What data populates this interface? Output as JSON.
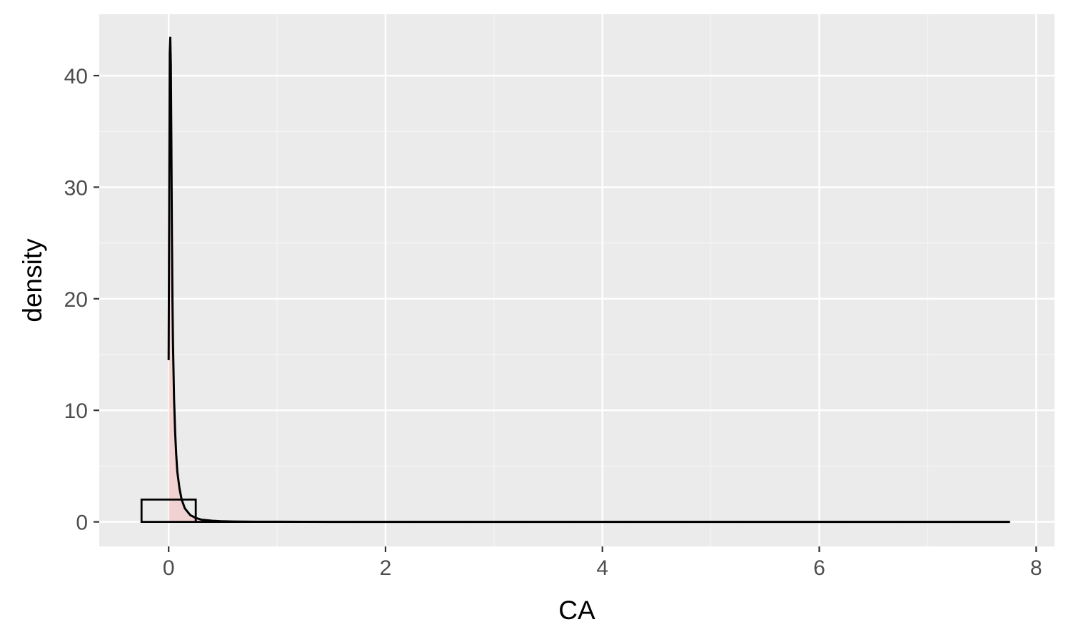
{
  "chart_data": {
    "type": "histogram-density",
    "xlabel": "CA",
    "ylabel": "density",
    "xlim": [
      -0.64,
      8.17
    ],
    "ylim": [
      -2.2,
      45.5
    ],
    "x_ticks": [
      0,
      2,
      4,
      6,
      8
    ],
    "x_tick_labels": [
      "0",
      "2",
      "4",
      "6",
      "8"
    ],
    "y_ticks": [
      0,
      10,
      20,
      30,
      40
    ],
    "y_tick_labels": [
      "0",
      "10",
      "20",
      "30",
      "40"
    ],
    "grid": true,
    "legend": "none",
    "histogram": {
      "bins": [
        {
          "x_start": -0.25,
          "x_end": 0.25,
          "density": 2.0
        },
        {
          "x_start": 0.25,
          "x_end": 0.75,
          "density": 0.0
        },
        {
          "x_start": 0.75,
          "x_end": 1.25,
          "density": 0.0
        },
        {
          "x_start": 1.25,
          "x_end": 1.75,
          "density": 0.0
        },
        {
          "x_start": 1.75,
          "x_end": 2.25,
          "density": 0.0
        },
        {
          "x_start": 2.25,
          "x_end": 2.75,
          "density": 0.0
        },
        {
          "x_start": 2.75,
          "x_end": 3.25,
          "density": 0.0
        },
        {
          "x_start": 3.25,
          "x_end": 3.75,
          "density": 0.0
        },
        {
          "x_start": 3.75,
          "x_end": 4.25,
          "density": 0.0
        },
        {
          "x_start": 4.25,
          "x_end": 4.75,
          "density": 0.0
        },
        {
          "x_start": 4.75,
          "x_end": 5.25,
          "density": 0.0
        },
        {
          "x_start": 5.25,
          "x_end": 5.75,
          "density": 0.0
        },
        {
          "x_start": 5.75,
          "x_end": 6.25,
          "density": 0.0
        },
        {
          "x_start": 6.25,
          "x_end": 6.75,
          "density": 0.0
        },
        {
          "x_start": 6.75,
          "x_end": 7.25,
          "density": 0.0
        },
        {
          "x_start": 7.25,
          "x_end": 7.75,
          "density": 0.0
        }
      ],
      "fill": "none",
      "outline": "#000000"
    },
    "density_curve": {
      "x": [
        0.0,
        0.005,
        0.01,
        0.015,
        0.02,
        0.025,
        0.03,
        0.035,
        0.04,
        0.05,
        0.06,
        0.07,
        0.08,
        0.1,
        0.12,
        0.15,
        0.2,
        0.25,
        0.3,
        0.4,
        0.5,
        0.6,
        0.8,
        1.0,
        1.5,
        2.0,
        3.0,
        4.0,
        5.0,
        6.0,
        7.0,
        7.75
      ],
      "y": [
        14.5,
        28.0,
        42.0,
        43.4,
        41.0,
        34.0,
        26.0,
        20.0,
        16.0,
        11.0,
        8.0,
        6.0,
        4.5,
        3.0,
        2.0,
        1.2,
        0.6,
        0.35,
        0.2,
        0.1,
        0.05,
        0.03,
        0.015,
        0.01,
        0.0,
        0.0,
        0.0,
        0.0,
        0.0,
        0.0,
        0.0,
        0.0
      ],
      "fill": "#ff9999",
      "fill_opacity": 0.3,
      "stroke": "#000000"
    },
    "colors": {
      "panel_background": "#ebebeb",
      "grid_major": "#ffffff",
      "grid_minor": "#f5f5f5",
      "tick_text": "#4d4d4d",
      "title_text": "#000000"
    }
  }
}
